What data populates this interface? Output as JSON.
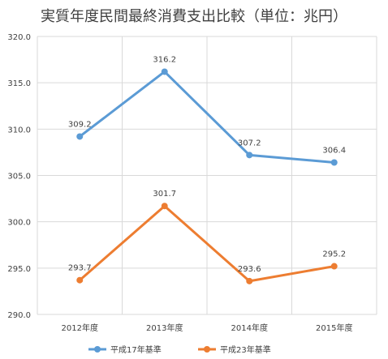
{
  "chart_data": {
    "type": "line",
    "title": "実質年度民間最終消費支出比較（単位：兆円）",
    "categories": [
      "2012年度",
      "2013年度",
      "2014年度",
      "2015年度"
    ],
    "series": [
      {
        "name": "平成17年基準",
        "values": [
          309.2,
          316.2,
          307.2,
          306.4
        ],
        "labels": [
          "309.2",
          "316.2",
          "307.2",
          "306.4"
        ],
        "color": "#5b9bd5"
      },
      {
        "name": "平成23年基準",
        "values": [
          293.7,
          301.7,
          293.6,
          295.2
        ],
        "labels": [
          "293.7",
          "301.7",
          "293.6",
          "295.2"
        ],
        "color": "#ed7d31"
      }
    ],
    "yticks": [
      "320.0",
      "315.0",
      "310.0",
      "305.0",
      "300.0",
      "295.0",
      "290.0"
    ],
    "ylim": [
      290,
      320
    ],
    "grid": true,
    "legend": "bottom"
  }
}
